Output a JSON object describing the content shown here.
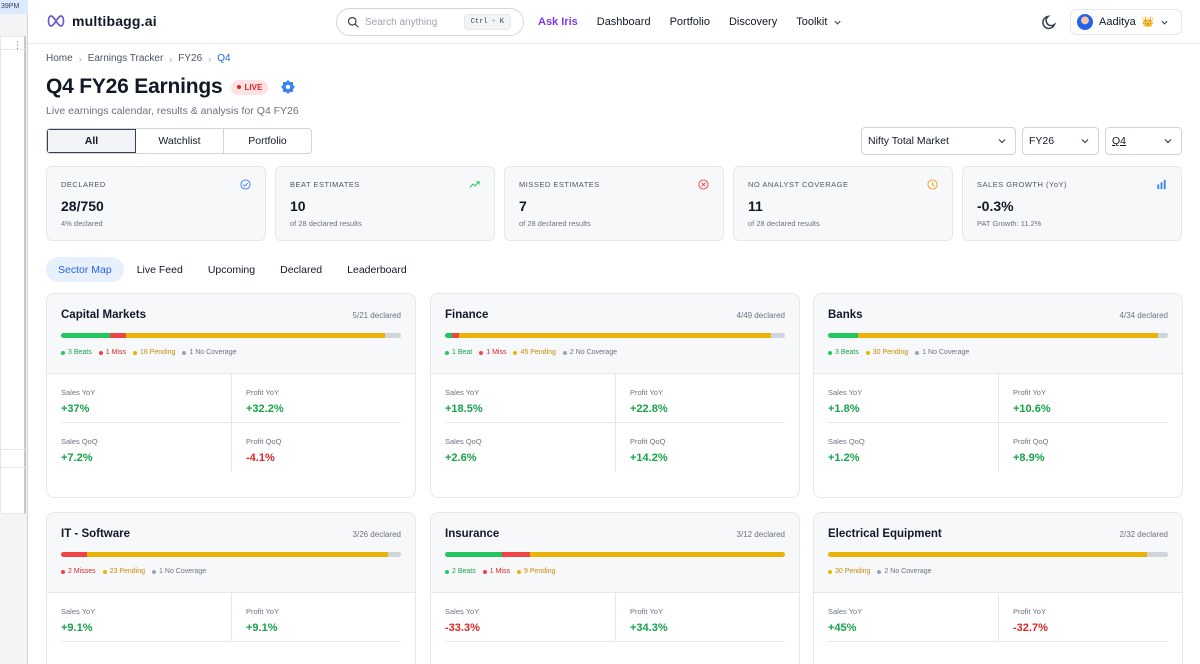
{
  "window": {
    "clock": "39PM"
  },
  "nav": {
    "brand": "multibagg.ai",
    "search_placeholder": "Search anything",
    "kbd_ctrl": "Ctrl",
    "kbd_plus": "+",
    "kbd_k": "K",
    "links": [
      "Ask Iris",
      "Dashboard",
      "Portfolio",
      "Discovery",
      "Toolkit"
    ],
    "user_name": "Aaditya",
    "crown": "👑"
  },
  "breadcrumb": [
    "Home",
    "Earnings Tracker",
    "FY26",
    "Q4"
  ],
  "page": {
    "title": "Q4 FY26 Earnings",
    "live": "LIVE",
    "subtitle": "Live earnings calendar, results & analysis for Q4 FY26"
  },
  "filters": {
    "segments": [
      "All",
      "Watchlist",
      "Portfolio"
    ],
    "market": "Nifty Total Market",
    "fy": "FY26",
    "quarter": "Q4"
  },
  "stats": [
    {
      "label": "DECLARED",
      "value": "28/750",
      "sub": "4% declared",
      "icon": "check-circle-icon",
      "color": "#3b82f6"
    },
    {
      "label": "BEAT ESTIMATES",
      "value": "10",
      "sub": "of 28 declared results",
      "icon": "trend-up-icon",
      "color": "#22c55e"
    },
    {
      "label": "MISSED ESTIMATES",
      "value": "7",
      "sub": "of 28 declared results",
      "icon": "x-circle-icon",
      "color": "#ef4444"
    },
    {
      "label": "NO ANALYST COVERAGE",
      "value": "11",
      "sub": "of 28 declared results",
      "icon": "clock-icon",
      "color": "#f59e0b"
    },
    {
      "label": "SALES GROWTH (YoY)",
      "value": "-0.3%",
      "sub": "PAT Growth: 11.2%",
      "icon": "bar-chart-icon",
      "color": "#3b82f6"
    }
  ],
  "tabs": [
    "Sector Map",
    "Live Feed",
    "Upcoming",
    "Declared",
    "Leaderboard"
  ],
  "colors": {
    "beat": "#22c55e",
    "miss": "#ef4444",
    "pending": "#eab308",
    "nocov": "#d1d5db",
    "positive": "#16a34a",
    "negative": "#dc2626"
  },
  "sectors": [
    {
      "name": "Capital Markets",
      "declared": "5/21 declared",
      "bar": {
        "beats": 3,
        "misses": 1,
        "pending": 16,
        "nocov": 1,
        "total": 21
      },
      "legend": [
        {
          "type": "beat",
          "text": "3 Beats"
        },
        {
          "type": "miss",
          "text": "1 Miss"
        },
        {
          "type": "pending",
          "text": "16 Pending"
        },
        {
          "type": "nocov",
          "text": "1 No Coverage"
        }
      ],
      "metrics": {
        "sales_yoy": "+37%",
        "profit_yoy": "+32.2%",
        "sales_qoq": "+7.2%",
        "profit_qoq": "-4.1%"
      }
    },
    {
      "name": "Finance",
      "declared": "4/49 declared",
      "bar": {
        "beats": 1,
        "misses": 1,
        "pending": 45,
        "nocov": 2,
        "total": 49
      },
      "legend": [
        {
          "type": "beat",
          "text": "1 Beat"
        },
        {
          "type": "miss",
          "text": "1 Miss"
        },
        {
          "type": "pending",
          "text": "45 Pending"
        },
        {
          "type": "nocov",
          "text": "2 No Coverage"
        }
      ],
      "metrics": {
        "sales_yoy": "+18.5%",
        "profit_yoy": "+22.8%",
        "sales_qoq": "+2.6%",
        "profit_qoq": "+14.2%"
      }
    },
    {
      "name": "Banks",
      "declared": "4/34 declared",
      "bar": {
        "beats": 3,
        "misses": 0,
        "pending": 30,
        "nocov": 1,
        "total": 34
      },
      "legend": [
        {
          "type": "beat",
          "text": "3 Beats"
        },
        {
          "type": "pending",
          "text": "30 Pending"
        },
        {
          "type": "nocov",
          "text": "1 No Coverage"
        }
      ],
      "metrics": {
        "sales_yoy": "+1.8%",
        "profit_yoy": "+10.6%",
        "sales_qoq": "+1.2%",
        "profit_qoq": "+8.9%"
      }
    },
    {
      "name": "IT - Software",
      "declared": "3/26 declared",
      "bar": {
        "beats": 0,
        "misses": 2,
        "pending": 23,
        "nocov": 1,
        "total": 26
      },
      "legend": [
        {
          "type": "miss",
          "text": "2 Misses"
        },
        {
          "type": "pending",
          "text": "23 Pending"
        },
        {
          "type": "nocov",
          "text": "1 No Coverage"
        }
      ],
      "metrics": {
        "sales_yoy": "+9.1%",
        "profit_yoy": "+9.1%"
      }
    },
    {
      "name": "Insurance",
      "declared": "3/12 declared",
      "bar": {
        "beats": 2,
        "misses": 1,
        "pending": 9,
        "nocov": 0,
        "total": 12
      },
      "legend": [
        {
          "type": "beat",
          "text": "2 Beats"
        },
        {
          "type": "miss",
          "text": "1 Miss"
        },
        {
          "type": "pending",
          "text": "9 Pending"
        }
      ],
      "metrics": {
        "sales_yoy": "-33.3%",
        "profit_yoy": "+34.3%"
      }
    },
    {
      "name": "Electrical Equipment",
      "declared": "2/32 declared",
      "bar": {
        "beats": 0,
        "misses": 0,
        "pending": 30,
        "nocov": 2,
        "total": 32
      },
      "legend": [
        {
          "type": "pending",
          "text": "30 Pending"
        },
        {
          "type": "nocov",
          "text": "2 No Coverage"
        }
      ],
      "metrics": {
        "sales_yoy": "+45%",
        "profit_yoy": "-32.7%"
      }
    }
  ],
  "metric_labels": {
    "sales_yoy": "Sales YoY",
    "profit_yoy": "Profit YoY",
    "sales_qoq": "Sales QoQ",
    "profit_qoq": "Profit QoQ"
  }
}
